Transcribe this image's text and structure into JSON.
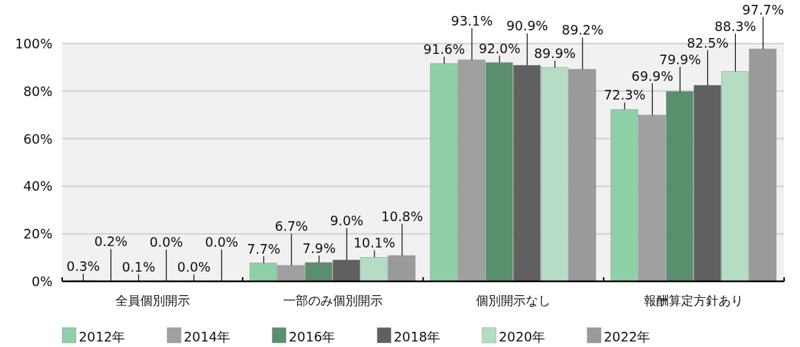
{
  "chart_data": {
    "type": "bar",
    "categories": [
      "全員個別開示",
      "一部のみ個別開示",
      "個別開示なし",
      "報酬算定方針あり"
    ],
    "series": [
      {
        "name": "2012年",
        "color": "#8fd0a8",
        "values": [
          0.3,
          7.7,
          91.6,
          72.3
        ],
        "value_labels": [
          "0.3%",
          "7.7%",
          "91.6%",
          "72.3%"
        ]
      },
      {
        "name": "2014年",
        "color": "#a0a0a0",
        "values": [
          0.2,
          6.7,
          93.1,
          69.9
        ],
        "value_labels": [
          "0.2%",
          "6.7%",
          "93.1%",
          "69.9%"
        ]
      },
      {
        "name": "2016年",
        "color": "#5a8f6e",
        "values": [
          0.1,
          7.9,
          92.0,
          79.9
        ],
        "value_labels": [
          "0.1%",
          "7.9%",
          "92.0%",
          "79.9%"
        ]
      },
      {
        "name": "2018年",
        "color": "#606060",
        "values": [
          0.0,
          9.0,
          90.9,
          82.5
        ],
        "value_labels": [
          "0.0%",
          "9.0%",
          "90.9%",
          "82.5%"
        ]
      },
      {
        "name": "2020年",
        "color": "#b5dcc4",
        "values": [
          0.0,
          10.1,
          89.9,
          88.3
        ],
        "value_labels": [
          "0.0%",
          "10.1%",
          "89.9%",
          "88.3%"
        ]
      },
      {
        "name": "2022年",
        "color": "#9a9a9a",
        "values": [
          0.0,
          10.8,
          89.2,
          97.7
        ],
        "value_labels": [
          "0.0%",
          "10.8%",
          "89.2%",
          "97.7%"
        ]
      }
    ],
    "ylim": [
      0,
      100
    ],
    "yticks": [
      {
        "value": 0,
        "label": "0%"
      },
      {
        "value": 20,
        "label": "20%"
      },
      {
        "value": 40,
        "label": "40%"
      },
      {
        "value": 60,
        "label": "60%"
      },
      {
        "value": 80,
        "label": "80%"
      },
      {
        "value": 100,
        "label": "100%"
      }
    ],
    "grid": "y",
    "legend": "bottom"
  }
}
